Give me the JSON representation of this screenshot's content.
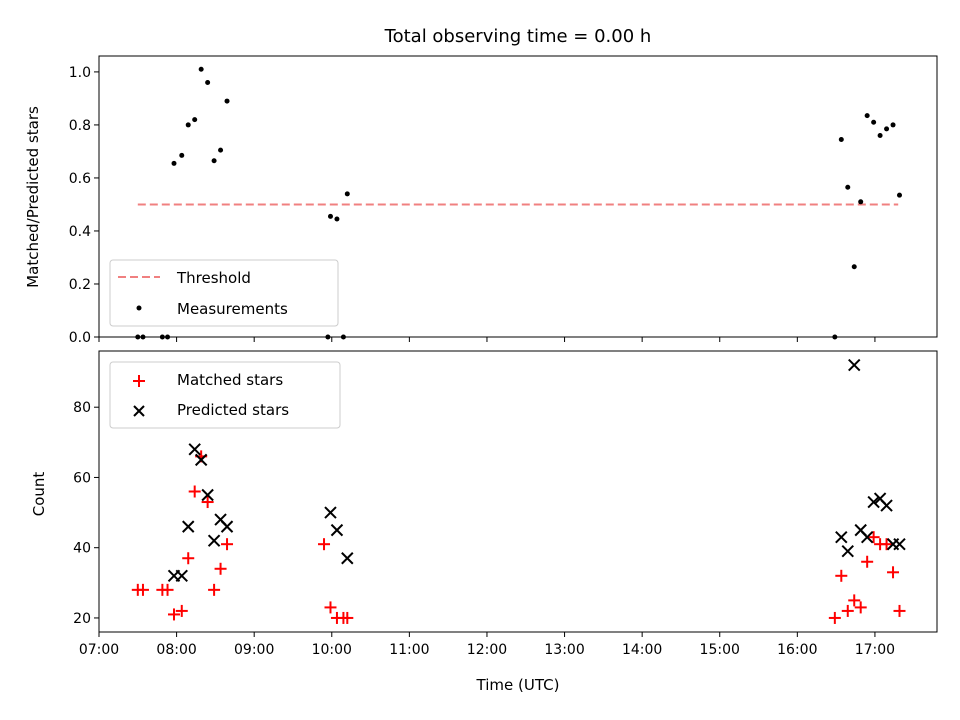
{
  "chart_data": [
    {
      "type": "scatter",
      "title": "Total observing time = 0.00 h",
      "ylabel": "Matched/Predicted stars",
      "xlabel": "",
      "xlim": [
        "07:00",
        "17:48"
      ],
      "ylim": [
        0,
        1.06
      ],
      "yticks": [
        "0.0",
        "0.2",
        "0.4",
        "0.6",
        "0.8",
        "1.0"
      ],
      "grid": false,
      "legend_position": "lower-left",
      "threshold": {
        "name": "Threshold",
        "value": 0.5,
        "x_start": "07:30",
        "x_end": "17:18",
        "color": "#f08080",
        "style": "dashed"
      },
      "series": [
        {
          "name": "Measurements",
          "marker": "dot",
          "color": "#000000",
          "points": [
            [
              "07:30",
              0.0
            ],
            [
              "07:34",
              0.0
            ],
            [
              "07:49",
              0.0
            ],
            [
              "07:53",
              0.0
            ],
            [
              "07:58",
              0.655
            ],
            [
              "08:04",
              0.685
            ],
            [
              "08:09",
              0.8
            ],
            [
              "08:14",
              0.82
            ],
            [
              "08:19",
              1.01
            ],
            [
              "08:24",
              0.96
            ],
            [
              "08:29",
              0.665
            ],
            [
              "08:34",
              0.705
            ],
            [
              "08:39",
              0.89
            ],
            [
              "09:57",
              0.0
            ],
            [
              "09:59",
              0.455
            ],
            [
              "10:04",
              0.445
            ],
            [
              "10:09",
              0.0
            ],
            [
              "10:12",
              0.54
            ],
            [
              "16:29",
              0.0
            ],
            [
              "16:34",
              0.745
            ],
            [
              "16:39",
              0.565
            ],
            [
              "16:44",
              0.265
            ],
            [
              "16:49",
              0.51
            ],
            [
              "16:54",
              0.835
            ],
            [
              "16:59",
              0.81
            ],
            [
              "17:04",
              0.76
            ],
            [
              "17:09",
              0.785
            ],
            [
              "17:14",
              0.8
            ],
            [
              "17:19",
              0.535
            ]
          ]
        }
      ]
    },
    {
      "type": "scatter",
      "title": "",
      "ylabel": "Count",
      "xlabel": "Time (UTC)",
      "xlim": [
        "07:00",
        "17:48"
      ],
      "ylim": [
        16,
        96
      ],
      "yticks": [
        "20",
        "40",
        "60",
        "80"
      ],
      "xticks": [
        "07:00",
        "08:00",
        "09:00",
        "10:00",
        "11:00",
        "12:00",
        "13:00",
        "14:00",
        "15:00",
        "16:00",
        "17:00"
      ],
      "grid": false,
      "legend_position": "upper-left",
      "series": [
        {
          "name": "Matched stars",
          "marker": "plus",
          "color": "#ff0000",
          "points": [
            [
              "07:30",
              28
            ],
            [
              "07:34",
              28
            ],
            [
              "07:49",
              28
            ],
            [
              "07:53",
              28
            ],
            [
              "07:58",
              21
            ],
            [
              "08:04",
              22
            ],
            [
              "08:09",
              37
            ],
            [
              "08:14",
              56
            ],
            [
              "08:19",
              66
            ],
            [
              "08:24",
              53
            ],
            [
              "08:29",
              28
            ],
            [
              "08:34",
              34
            ],
            [
              "08:39",
              41
            ],
            [
              "09:54",
              41
            ],
            [
              "09:59",
              23
            ],
            [
              "10:04",
              20
            ],
            [
              "10:09",
              20
            ],
            [
              "10:12",
              20
            ],
            [
              "16:29",
              20
            ],
            [
              "16:34",
              32
            ],
            [
              "16:39",
              22
            ],
            [
              "16:44",
              25
            ],
            [
              "16:49",
              23
            ],
            [
              "16:54",
              36
            ],
            [
              "16:59",
              43
            ],
            [
              "17:04",
              41
            ],
            [
              "17:09",
              41
            ],
            [
              "17:14",
              33
            ],
            [
              "17:19",
              22
            ]
          ]
        },
        {
          "name": "Predicted stars",
          "marker": "x",
          "color": "#000000",
          "points": [
            [
              "07:58",
              32
            ],
            [
              "08:04",
              32
            ],
            [
              "08:09",
              46
            ],
            [
              "08:14",
              68
            ],
            [
              "08:19",
              65
            ],
            [
              "08:24",
              55
            ],
            [
              "08:29",
              42
            ],
            [
              "08:34",
              48
            ],
            [
              "08:39",
              46
            ],
            [
              "09:59",
              50
            ],
            [
              "10:04",
              45
            ],
            [
              "10:12",
              37
            ],
            [
              "16:34",
              43
            ],
            [
              "16:39",
              39
            ],
            [
              "16:44",
              92
            ],
            [
              "16:49",
              45
            ],
            [
              "16:54",
              43
            ],
            [
              "16:59",
              53
            ],
            [
              "17:04",
              54
            ],
            [
              "17:09",
              52
            ],
            [
              "17:14",
              41
            ],
            [
              "17:19",
              41
            ]
          ]
        }
      ]
    }
  ]
}
